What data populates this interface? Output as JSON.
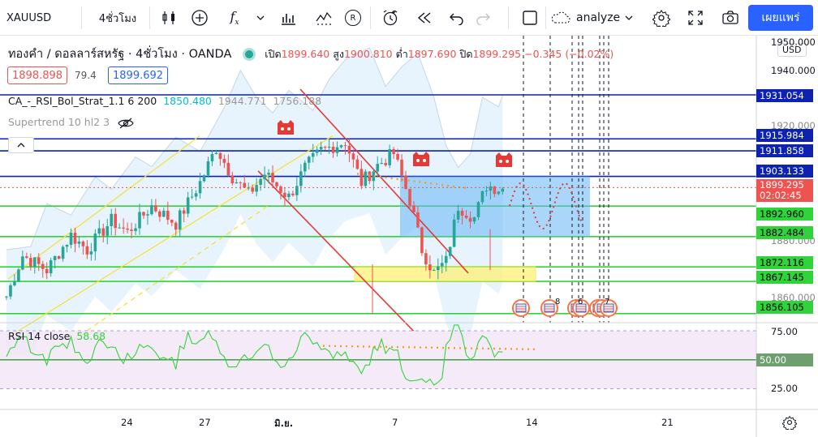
{
  "toolbar": {
    "symbol": "XAUUSD",
    "interval": "4ชั่วโมง",
    "replay_badge": "R",
    "analyze_label": "analyze",
    "publish_label": "เผยแพร่"
  },
  "header": {
    "title": "ทองคำ / ดอลลาร์สหรัฐ · 4ชั่วโมง · OANDA",
    "open_label": "เปิด",
    "open": "1899.640",
    "high_label": "สูง",
    "high": "1900.810",
    "low_label": "ต่ำ",
    "low": "1897.690",
    "close_label": "ปิด",
    "close": "1899.295",
    "change": "−0.345 (−0.02%)",
    "sell_price": "1898.898",
    "spread": "79.4",
    "buy_price": "1899.692"
  },
  "indicators": {
    "strategy_name": "CA_-_RSI_Bol_Strat_1.1 6 200",
    "strategy_v1": "1850.480",
    "strategy_v2": "1944.771",
    "strategy_v3": "1756.188",
    "supertrend_name": "Supertrend 10 hl2 3",
    "rsi_name": "RSI 14 close",
    "rsi_value": "58.68"
  },
  "price_axis": {
    "currency": "USD",
    "ticks": [
      "1950.000",
      "1940.000",
      "1920.000",
      "1880.000",
      "1860.000"
    ],
    "current_price": "1899.295",
    "countdown": "02:02:45",
    "line_labels": [
      {
        "label": "1931.054",
        "color": "#0d22b0"
      },
      {
        "label": "1915.984",
        "color": "#0d22b0"
      },
      {
        "label": "1911.858",
        "color": "#0d22b0"
      },
      {
        "label": "1903.133",
        "color": "#0d22b0"
      },
      {
        "label": "1892.960",
        "color": "#31d33a"
      },
      {
        "label": "1882.484",
        "color": "#31d33a"
      },
      {
        "label": "1872.116",
        "color": "#31d33a"
      },
      {
        "label": "1867.145",
        "color": "#31d33a"
      },
      {
        "label": "1856.105",
        "color": "#31d33a"
      }
    ]
  },
  "rsi_axis": {
    "ticks": [
      "75.00",
      "25.00"
    ],
    "mid_label": "50.00"
  },
  "time_axis": {
    "ticks": [
      "24",
      "27",
      "มิ.ย.",
      "7",
      "14",
      "21"
    ]
  },
  "events": {
    "labels": [
      "8",
      "6",
      "7"
    ]
  },
  "colors": {
    "bull": "#26a69a",
    "bear": "#ef5350",
    "support": "#31d33a",
    "resistance": "#0d22b0",
    "channel": "#f5e23a",
    "down_channel": "#e53935",
    "accent": "#2962ff"
  },
  "chart_data": {
    "type": "candlestick",
    "symbol": "XAUUSD",
    "y_range": [
      1849,
      1952
    ],
    "current_price": 1899.295,
    "support_resistance_levels": [
      1931.054,
      1915.984,
      1911.858,
      1903.133,
      1892.96,
      1882.484,
      1872.116,
      1867.145,
      1856.105
    ],
    "rsi": {
      "value": 58.68,
      "levels": [
        75,
        50,
        25
      ]
    }
  }
}
